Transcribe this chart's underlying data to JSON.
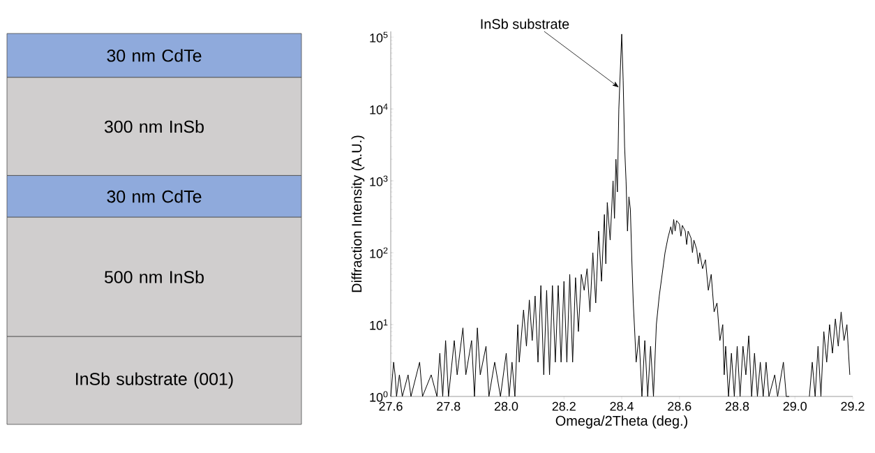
{
  "chart_data": [
    {
      "type": "other",
      "categories": [
        "30 nm CdTe",
        "300 nm InSb",
        "30 nm CdTe",
        "500 nm InSb",
        "InSb substrate (001)"
      ],
      "colors": [
        "#8faadc",
        "#d0cece",
        "#8faadc",
        "#d0cece",
        "#d0cece"
      ]
    },
    {
      "type": "line",
      "xlabel": "Omega/2Theta (deg.)",
      "ylabel": "Diffraction Intensity (A.U.)",
      "log": "y",
      "xlim": [
        27.6,
        29.2
      ],
      "ylim": [
        1,
        120000
      ],
      "xticks": [
        {
          "value": 27.6,
          "label": "27.6"
        },
        {
          "value": 27.8,
          "label": "27.8"
        },
        {
          "value": 28.0,
          "label": "28.0"
        },
        {
          "value": 28.2,
          "label": "28.2"
        },
        {
          "value": 28.4,
          "label": "28.4"
        },
        {
          "value": 28.6,
          "label": "28.6"
        },
        {
          "value": 28.8,
          "label": "28.8"
        },
        {
          "value": 29.0,
          "label": "29.0"
        },
        {
          "value": 29.2,
          "label": "29.2"
        }
      ],
      "yticks": [
        {
          "value": 1,
          "label": "10$^{0}$"
        },
        {
          "value": 10,
          "label": "10$^{1}$"
        },
        {
          "value": 100,
          "label": "10$^{2}$"
        },
        {
          "value": 1000,
          "label": "10$^{3}$"
        },
        {
          "value": 10000,
          "label": "10$^{4}$"
        },
        {
          "value": 100000,
          "label": "10$^{5}$"
        }
      ],
      "grid": false,
      "marker": "none",
      "line_style": "solid",
      "annotations": [
        {
          "text": "InSb substrate",
          "x": 28.39,
          "y": 20000
        }
      ],
      "series": [
        {
          "color": "#000000",
          "x": [
            27.6,
            27.61,
            27.615,
            27.62,
            27.63,
            27.64,
            27.66,
            27.67,
            27.7,
            27.71,
            27.74,
            27.76,
            27.77,
            27.78,
            27.79,
            27.8,
            27.82,
            27.83,
            27.85,
            27.86,
            27.88,
            27.89,
            27.9,
            27.91,
            27.93,
            27.94,
            27.96,
            27.98,
            28.0,
            28.01,
            28.02,
            28.03,
            28.04,
            28.045,
            28.06,
            28.07,
            28.08,
            28.09,
            28.1,
            28.11,
            28.12,
            28.13,
            28.14,
            28.15,
            28.16,
            28.17,
            28.18,
            28.19,
            28.2,
            28.21,
            28.22,
            28.23,
            28.24,
            28.25,
            28.26,
            28.27,
            28.28,
            28.29,
            28.3,
            28.31,
            28.32,
            28.33,
            28.34,
            28.345,
            28.35,
            28.36,
            28.37,
            28.375,
            28.38,
            28.385,
            28.39,
            28.4,
            28.405,
            28.41,
            28.415,
            28.42,
            28.425,
            28.43,
            28.435,
            28.44,
            28.445,
            28.45,
            28.46,
            28.47,
            28.48,
            28.49,
            28.5,
            28.51,
            28.52,
            28.53,
            28.54,
            28.55,
            28.56,
            28.57,
            28.575,
            28.58,
            28.585,
            28.59,
            28.6,
            28.605,
            28.61,
            28.62,
            28.625,
            28.63,
            28.64,
            28.645,
            28.65,
            28.66,
            28.665,
            28.67,
            28.68,
            28.69,
            28.7,
            28.71,
            28.72,
            28.73,
            28.74,
            28.75,
            28.755,
            28.76,
            28.77,
            28.78,
            28.79,
            28.8,
            28.81,
            28.82,
            28.83,
            28.84,
            28.85,
            28.86,
            28.87,
            28.88,
            28.89,
            28.9,
            28.91,
            28.93,
            28.94,
            28.96,
            28.97,
            28.98,
            29.01,
            29.05,
            29.06,
            29.07,
            29.08,
            29.09,
            29.1,
            29.11,
            29.12,
            29.13,
            29.14,
            29.15,
            29.16,
            29.17,
            29.18,
            29.19
          ],
          "values": [
            1,
            3,
            2,
            1,
            2,
            1,
            2,
            1,
            3,
            1,
            2,
            1,
            4,
            1,
            6,
            1,
            6,
            2,
            9,
            2,
            6,
            1,
            9,
            2,
            5,
            1,
            3,
            1,
            4,
            1,
            3,
            1,
            10,
            3,
            16,
            5,
            22,
            6,
            25,
            3,
            35,
            2,
            30,
            2,
            35,
            3,
            35,
            3,
            40,
            3,
            50,
            3,
            45,
            8,
            50,
            30,
            60,
            15,
            100,
            20,
            200,
            40,
            340,
            70,
            500,
            150,
            1000,
            300,
            2000,
            700,
            10000,
            110000,
            25000,
            3000,
            1000,
            200,
            600,
            400,
            80,
            20,
            8,
            3,
            7,
            1,
            6,
            1,
            5,
            1,
            10,
            25,
            50,
            100,
            160,
            230,
            180,
            290,
            200,
            280,
            250,
            170,
            240,
            200,
            130,
            200,
            160,
            100,
            150,
            110,
            70,
            100,
            60,
            80,
            30,
            50,
            15,
            20,
            6,
            10,
            2,
            5,
            1,
            4,
            1,
            5,
            1,
            5,
            2,
            7,
            1,
            4,
            1,
            3,
            1,
            3,
            1,
            2,
            1,
            3,
            1,
            1,
            null,
            1,
            3,
            1,
            5,
            1,
            8,
            3,
            10,
            4,
            12,
            5,
            15,
            6,
            10,
            2
          ]
        }
      ]
    }
  ]
}
